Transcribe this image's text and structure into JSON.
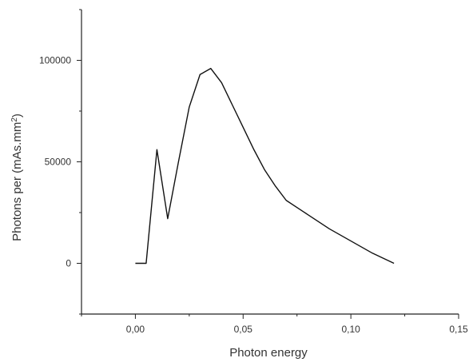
{
  "chart_data": {
    "type": "line",
    "title": "",
    "xlabel": "Photon energy",
    "ylabel_prefix": "Photons per (mAs.mm",
    "ylabel_sup": "2",
    "ylabel_suffix": ")",
    "xlim": [
      -0.025,
      0.15
    ],
    "ylim": [
      -25000,
      125000
    ],
    "x_ticks": [
      0.0,
      0.05,
      0.1,
      0.15
    ],
    "x_tick_labels": [
      "0,00",
      "0,05",
      "0,10",
      "0,15"
    ],
    "y_ticks": [
      0,
      50000,
      100000
    ],
    "y_tick_labels": [
      "0",
      "50000",
      "100000"
    ],
    "grid": false,
    "legend": "none",
    "line_color": "#111111",
    "series": [
      {
        "x": [
          0.0,
          0.005,
          0.01,
          0.015,
          0.02,
          0.025,
          0.03,
          0.035,
          0.04,
          0.045,
          0.05,
          0.055,
          0.06,
          0.065,
          0.07,
          0.08,
          0.09,
          0.1,
          0.11,
          0.12
        ],
        "values": [
          0,
          0,
          56000,
          22000,
          50000,
          77000,
          93000,
          96000,
          89000,
          78000,
          67000,
          56000,
          46000,
          38000,
          31000,
          24000,
          17000,
          11000,
          5000,
          0
        ]
      }
    ]
  }
}
